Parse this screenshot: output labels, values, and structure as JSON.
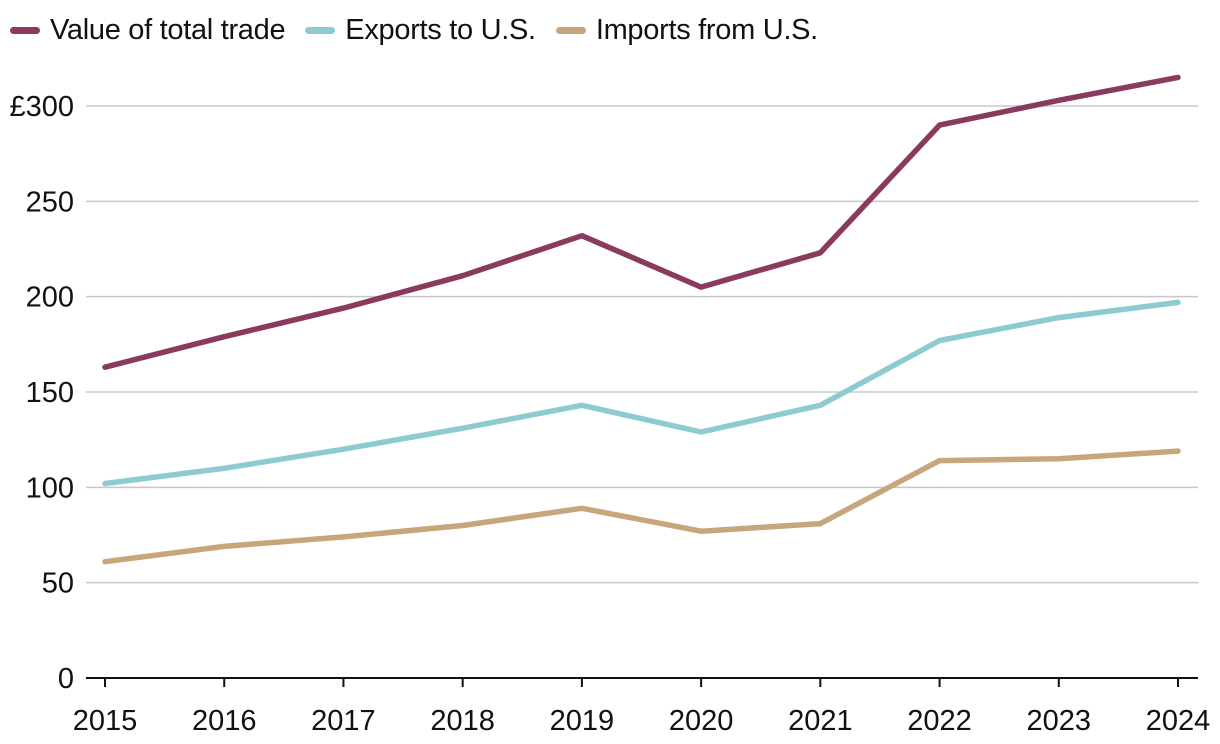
{
  "chart_data": {
    "type": "line",
    "title": "",
    "xlabel": "",
    "ylabel": "",
    "x": [
      2015,
      2016,
      2017,
      2018,
      2019,
      2020,
      2021,
      2022,
      2023,
      2024
    ],
    "x_tick_labels": [
      "2015",
      "2016",
      "2017",
      "2018",
      "2019",
      "2020",
      "2021",
      "2022",
      "2023",
      "2024"
    ],
    "ylim": [
      0,
      300
    ],
    "y_ticks": [
      0,
      50,
      100,
      150,
      200,
      250,
      300
    ],
    "y_tick_labels": [
      "0",
      "50",
      "100",
      "150",
      "200",
      "250",
      "£300"
    ],
    "grid": true,
    "legend_position": "top-left",
    "series": [
      {
        "name": "Value of total trade",
        "color": "#8a3a5c",
        "values": [
          163,
          179,
          194,
          211,
          232,
          205,
          223,
          290,
          303,
          315
        ]
      },
      {
        "name": "Exports to U.S.",
        "color": "#8ecbd1",
        "values": [
          102,
          110,
          120,
          131,
          143,
          129,
          143,
          177,
          189,
          197
        ]
      },
      {
        "name": "Imports from U.S.",
        "color": "#c8a67b",
        "values": [
          61,
          69,
          74,
          80,
          89,
          77,
          81,
          114,
          115,
          119
        ]
      }
    ]
  }
}
